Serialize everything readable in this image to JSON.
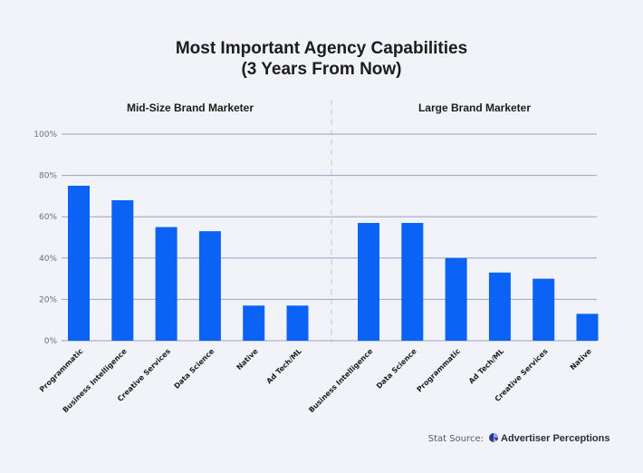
{
  "chart_data": {
    "type": "bar",
    "title": "Most Important Agency Capabilities",
    "subtitle": "(3 Years From Now)",
    "ylim": [
      0,
      100
    ],
    "yticks": [
      0,
      20,
      40,
      60,
      80,
      100
    ],
    "ytick_labels": [
      "0%",
      "20%",
      "40%",
      "60%",
      "80%",
      "100%"
    ],
    "grid": true,
    "panels": [
      {
        "name": "Mid-Size Brand Marketer",
        "categories": [
          "Programmatic",
          "Business Intelligence",
          "Creative Services",
          "Data Science",
          "Native",
          "Ad Tech/ML"
        ],
        "values": [
          75,
          68,
          55,
          53,
          17,
          17
        ]
      },
      {
        "name": "Large Brand Marketer",
        "categories": [
          "Business Intelligence",
          "Data Science",
          "Programmatic",
          "Ad Tech/ML",
          "Creative Services",
          "Native"
        ],
        "values": [
          57,
          57,
          40,
          33,
          30,
          13
        ]
      }
    ]
  },
  "colors": {
    "bar": "#0a63f5"
  },
  "source": {
    "label": "Stat Source:",
    "brand": "Advertiser Perceptions",
    "icon": "advertiser-perceptions-logo-icon"
  }
}
